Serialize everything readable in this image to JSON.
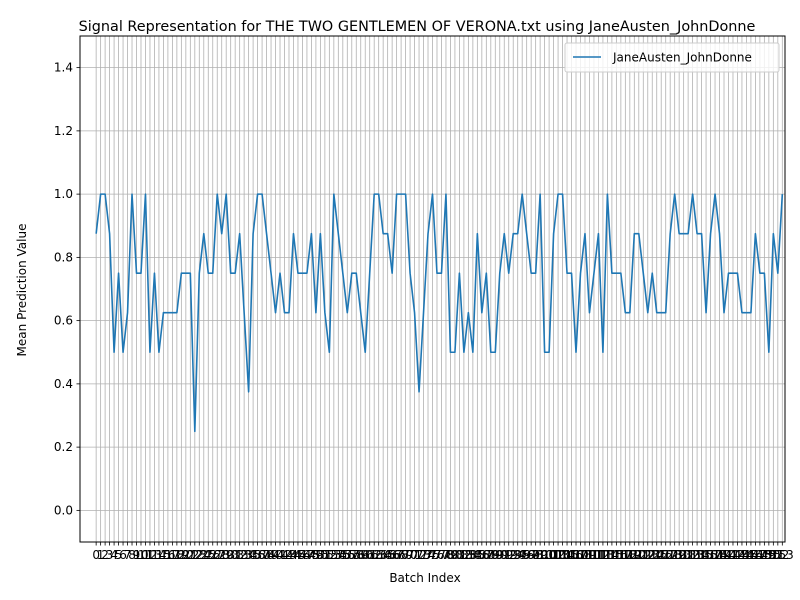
{
  "chart_data": {
    "type": "line",
    "title": "Signal Representation for THE TWO GENTLEMEN OF VERONA.txt using JaneAusten_JohnDonne",
    "xlabel": "Batch Index",
    "ylabel": "Mean Prediction Value",
    "xlim": [
      -3.6,
      153.6
    ],
    "ylim": [
      -0.1,
      1.5
    ],
    "yticks": [
      "0.0",
      "0.2",
      "0.4",
      "0.6",
      "0.8",
      "1.0",
      "1.2",
      "1.4"
    ],
    "x_start": 0,
    "x_end": 153,
    "grid": true,
    "legend_position": "top-right",
    "series": [
      {
        "name": "JaneAusten_JohnDonne",
        "color": "#1f77b4",
        "values": [
          0.875,
          1.0,
          1.0,
          0.875,
          0.5,
          0.75,
          0.5,
          0.625,
          1.0,
          0.75,
          0.75,
          1.0,
          0.5,
          0.75,
          0.5,
          0.625,
          0.625,
          0.625,
          0.625,
          0.75,
          0.75,
          0.75,
          0.25,
          0.75,
          0.875,
          0.75,
          0.75,
          1.0,
          0.875,
          1.0,
          0.75,
          0.75,
          0.875,
          0.625,
          0.375,
          0.875,
          1.0,
          1.0,
          0.875,
          0.75,
          0.625,
          0.75,
          0.625,
          0.625,
          0.875,
          0.75,
          0.75,
          0.75,
          0.875,
          0.625,
          0.875,
          0.625,
          0.5,
          1.0,
          0.875,
          0.75,
          0.625,
          0.75,
          0.75,
          0.625,
          0.5,
          0.75,
          1.0,
          1.0,
          0.875,
          0.875,
          0.75,
          1.0,
          1.0,
          1.0,
          0.75,
          0.625,
          0.375,
          0.625,
          0.875,
          1.0,
          0.75,
          0.75,
          1.0,
          0.5,
          0.5,
          0.75,
          0.5,
          0.625,
          0.5,
          0.875,
          0.625,
          0.75,
          0.5,
          0.5,
          0.75,
          0.875,
          0.75,
          0.875,
          0.875,
          1.0,
          0.875,
          0.75,
          0.75,
          1.0,
          0.5,
          0.5,
          0.875,
          1.0,
          1.0,
          0.75,
          0.75,
          0.5,
          0.75,
          0.875,
          0.625,
          0.75,
          0.875,
          0.5,
          1.0,
          0.75,
          0.75,
          0.75,
          0.625,
          0.625,
          0.875,
          0.875,
          0.75,
          0.625,
          0.75,
          0.625,
          0.625,
          0.625,
          0.875,
          1.0,
          0.875,
          0.875,
          0.875,
          1.0,
          0.875,
          0.875,
          0.625,
          0.875,
          1.0,
          0.875,
          0.625,
          0.75,
          0.75,
          0.75,
          0.625,
          0.625,
          0.625,
          0.875,
          0.75,
          0.75,
          0.5,
          0.875,
          0.75,
          1.0
        ]
      }
    ]
  }
}
